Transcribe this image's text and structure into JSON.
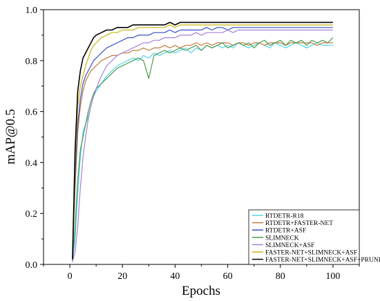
{
  "chart_data": {
    "type": "line",
    "title": "",
    "xlabel": "Epochs",
    "ylabel": "mAP@0.5",
    "xlim": [
      -10,
      110
    ],
    "ylim": [
      0,
      1.0
    ],
    "xticks": [
      0,
      20,
      40,
      60,
      80,
      100
    ],
    "yticks": [
      0.0,
      0.2,
      0.4,
      0.6,
      0.8,
      1.0
    ],
    "xtick_labels": [
      "0",
      "20",
      "40",
      "60",
      "80",
      "100"
    ],
    "ytick_labels": [
      "0.0",
      "0.2",
      "0.4",
      "0.6",
      "0.8",
      "1.0"
    ],
    "grid": false,
    "legend_position": "bottom-right",
    "x": [
      1,
      2,
      3,
      4,
      5,
      6,
      7,
      8,
      9,
      10,
      12,
      14,
      16,
      18,
      20,
      22,
      24,
      26,
      28,
      30,
      32,
      34,
      36,
      38,
      40,
      42,
      44,
      46,
      48,
      50,
      52,
      54,
      56,
      58,
      60,
      62,
      64,
      66,
      68,
      70,
      72,
      74,
      76,
      78,
      80,
      82,
      84,
      86,
      88,
      90,
      92,
      94,
      96,
      98,
      100
    ],
    "series": [
      {
        "name": "RTDETR-R18",
        "color": "#4fd6e8",
        "values": [
          0.01,
          0.1,
          0.28,
          0.42,
          0.52,
          0.55,
          0.58,
          0.62,
          0.66,
          0.68,
          0.71,
          0.74,
          0.76,
          0.78,
          0.79,
          0.8,
          0.81,
          0.8,
          0.82,
          0.81,
          0.83,
          0.82,
          0.83,
          0.84,
          0.83,
          0.84,
          0.85,
          0.83,
          0.85,
          0.84,
          0.86,
          0.85,
          0.86,
          0.85,
          0.86,
          0.85,
          0.87,
          0.86,
          0.85,
          0.86,
          0.87,
          0.86,
          0.85,
          0.87,
          0.86,
          0.85,
          0.86,
          0.87,
          0.86,
          0.85,
          0.86,
          0.87,
          0.86,
          0.86,
          0.86
        ]
      },
      {
        "name": "RTDETR+FASTER-NET",
        "color": "#c0783c",
        "values": [
          0.02,
          0.3,
          0.52,
          0.62,
          0.68,
          0.72,
          0.74,
          0.76,
          0.77,
          0.78,
          0.8,
          0.81,
          0.82,
          0.82,
          0.83,
          0.83,
          0.84,
          0.84,
          0.85,
          0.84,
          0.85,
          0.85,
          0.86,
          0.85,
          0.86,
          0.85,
          0.86,
          0.86,
          0.87,
          0.86,
          0.87,
          0.86,
          0.87,
          0.87,
          0.87,
          0.86,
          0.87,
          0.87,
          0.86,
          0.87,
          0.87,
          0.86,
          0.87,
          0.87,
          0.87,
          0.86,
          0.87,
          0.87,
          0.87,
          0.87,
          0.87,
          0.86,
          0.87,
          0.87,
          0.87
        ]
      },
      {
        "name": "RTDETR+ASF",
        "color": "#3a4fc4",
        "values": [
          0.02,
          0.35,
          0.55,
          0.65,
          0.71,
          0.74,
          0.76,
          0.78,
          0.8,
          0.81,
          0.83,
          0.85,
          0.86,
          0.87,
          0.88,
          0.89,
          0.89,
          0.9,
          0.9,
          0.9,
          0.91,
          0.91,
          0.91,
          0.92,
          0.91,
          0.92,
          0.92,
          0.92,
          0.92,
          0.92,
          0.93,
          0.92,
          0.93,
          0.93,
          0.92,
          0.93,
          0.93,
          0.93,
          0.93,
          0.93,
          0.93,
          0.93,
          0.93,
          0.93,
          0.93,
          0.93,
          0.93,
          0.93,
          0.93,
          0.93,
          0.93,
          0.93,
          0.93,
          0.93,
          0.93
        ]
      },
      {
        "name": "SLIMNECK",
        "color": "#4a9a4a",
        "values": [
          0.01,
          0.15,
          0.33,
          0.45,
          0.5,
          0.55,
          0.6,
          0.64,
          0.67,
          0.69,
          0.71,
          0.73,
          0.75,
          0.77,
          0.78,
          0.79,
          0.8,
          0.81,
          0.8,
          0.73,
          0.82,
          0.83,
          0.84,
          0.83,
          0.84,
          0.85,
          0.84,
          0.85,
          0.86,
          0.84,
          0.86,
          0.85,
          0.86,
          0.87,
          0.85,
          0.86,
          0.87,
          0.86,
          0.87,
          0.85,
          0.87,
          0.88,
          0.86,
          0.87,
          0.88,
          0.86,
          0.88,
          0.87,
          0.88,
          0.86,
          0.88,
          0.87,
          0.88,
          0.87,
          0.89
        ]
      },
      {
        "name": "SLIMNECK+ASF",
        "color": "#a67fdc",
        "values": [
          0.01,
          0.05,
          0.15,
          0.3,
          0.42,
          0.5,
          0.57,
          0.62,
          0.66,
          0.69,
          0.74,
          0.78,
          0.8,
          0.82,
          0.83,
          0.84,
          0.85,
          0.86,
          0.87,
          0.87,
          0.88,
          0.88,
          0.89,
          0.89,
          0.89,
          0.9,
          0.9,
          0.9,
          0.91,
          0.9,
          0.91,
          0.91,
          0.91,
          0.91,
          0.92,
          0.91,
          0.92,
          0.92,
          0.92,
          0.92,
          0.92,
          0.92,
          0.92,
          0.92,
          0.92,
          0.92,
          0.92,
          0.92,
          0.92,
          0.92,
          0.92,
          0.92,
          0.92,
          0.92,
          0.92
        ]
      },
      {
        "name": "FASTER-NET+SLIMNECK+ASF",
        "color": "#c8b412",
        "values": [
          0.02,
          0.4,
          0.62,
          0.7,
          0.74,
          0.78,
          0.81,
          0.84,
          0.86,
          0.87,
          0.89,
          0.9,
          0.91,
          0.91,
          0.92,
          0.92,
          0.92,
          0.93,
          0.93,
          0.93,
          0.93,
          0.93,
          0.93,
          0.94,
          0.93,
          0.94,
          0.94,
          0.94,
          0.94,
          0.94,
          0.94,
          0.94,
          0.94,
          0.94,
          0.94,
          0.94,
          0.94,
          0.94,
          0.94,
          0.94,
          0.94,
          0.94,
          0.94,
          0.94,
          0.94,
          0.94,
          0.94,
          0.94,
          0.94,
          0.94,
          0.94,
          0.94,
          0.94,
          0.94,
          0.94
        ]
      },
      {
        "name": "FASTER-NET+SLIMNECK+ASF+PRUNE",
        "color": "#000000",
        "values": [
          0.02,
          0.45,
          0.68,
          0.76,
          0.81,
          0.83,
          0.85,
          0.87,
          0.89,
          0.9,
          0.91,
          0.92,
          0.92,
          0.93,
          0.93,
          0.93,
          0.94,
          0.94,
          0.94,
          0.94,
          0.94,
          0.94,
          0.94,
          0.95,
          0.94,
          0.95,
          0.95,
          0.95,
          0.95,
          0.95,
          0.95,
          0.95,
          0.95,
          0.95,
          0.95,
          0.95,
          0.95,
          0.95,
          0.95,
          0.95,
          0.95,
          0.95,
          0.95,
          0.95,
          0.95,
          0.95,
          0.95,
          0.95,
          0.95,
          0.95,
          0.95,
          0.95,
          0.95,
          0.95,
          0.95
        ]
      }
    ]
  }
}
